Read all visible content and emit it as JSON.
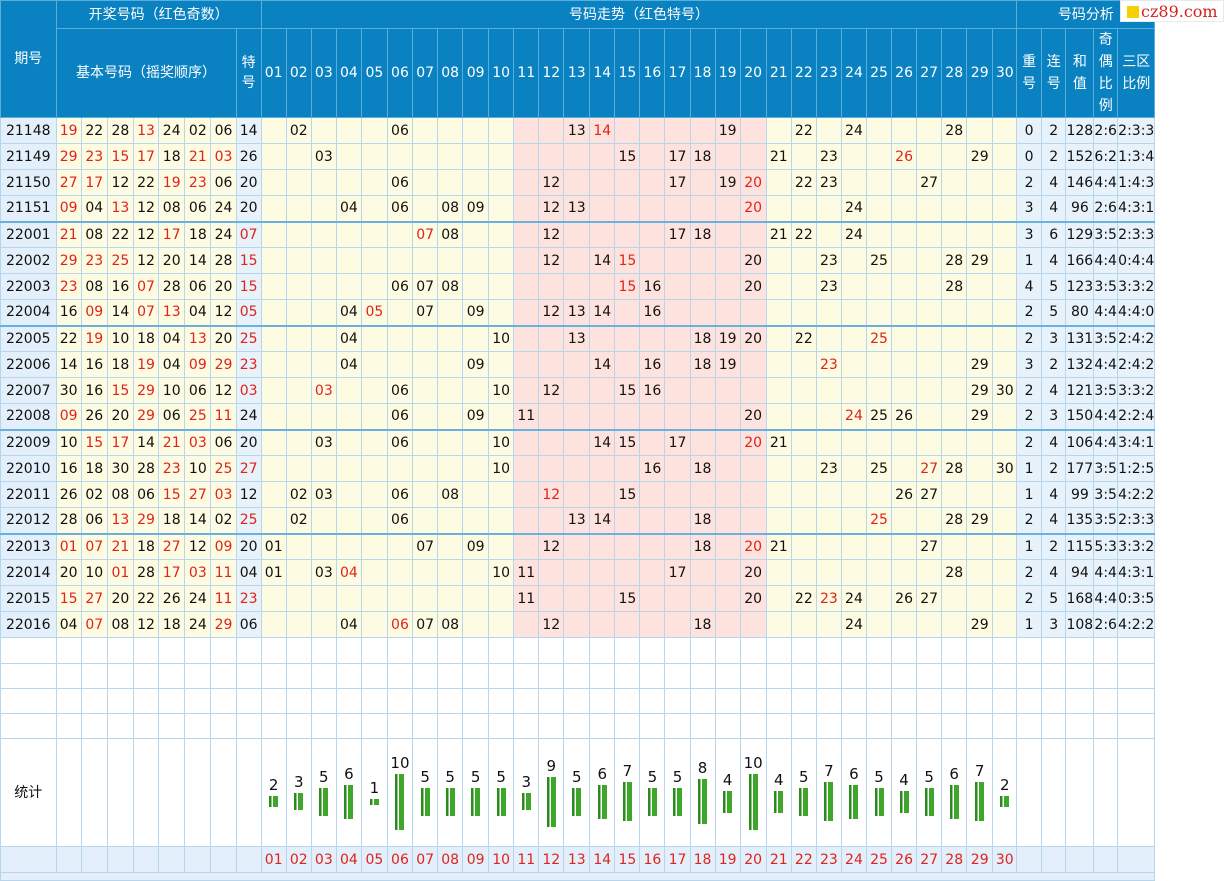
{
  "header": {
    "period_label": "期号",
    "draw_group": "开奖号码（红色奇数）",
    "basic_label": "基本号码（摇奖顺序）",
    "special_label": "特号",
    "trend_group": "号码走势（红色特号）",
    "analysis_group": "号码分析",
    "analysis_cols": [
      "重号",
      "连号",
      "和值",
      "奇偶比例",
      "三区比例"
    ]
  },
  "numbers": [
    "01",
    "02",
    "03",
    "04",
    "05",
    "06",
    "07",
    "08",
    "09",
    "10",
    "11",
    "12",
    "13",
    "14",
    "15",
    "16",
    "17",
    "18",
    "19",
    "20",
    "21",
    "22",
    "23",
    "24",
    "25",
    "26",
    "27",
    "28",
    "29",
    "30"
  ],
  "draws": [
    {
      "period": "21148",
      "balls": [
        "19",
        "22",
        "28",
        "13",
        "24",
        "02",
        "06"
      ],
      "special": "14",
      "repeat": "0",
      "consec": "2",
      "sum": "128",
      "oddeven": "2:6",
      "zone": "2:3:3"
    },
    {
      "period": "21149",
      "balls": [
        "29",
        "23",
        "15",
        "17",
        "18",
        "21",
        "03"
      ],
      "special": "26",
      "repeat": "0",
      "consec": "2",
      "sum": "152",
      "oddeven": "6:2",
      "zone": "1:3:4"
    },
    {
      "period": "21150",
      "balls": [
        "27",
        "17",
        "12",
        "22",
        "19",
        "23",
        "06"
      ],
      "special": "20",
      "repeat": "2",
      "consec": "4",
      "sum": "146",
      "oddeven": "4:4",
      "zone": "1:4:3"
    },
    {
      "period": "21151",
      "balls": [
        "09",
        "04",
        "13",
        "12",
        "08",
        "06",
        "24"
      ],
      "special": "20",
      "repeat": "3",
      "consec": "4",
      "sum": "96",
      "oddeven": "2:6",
      "zone": "4:3:1"
    },
    {
      "period": "22001",
      "balls": [
        "21",
        "08",
        "22",
        "12",
        "17",
        "18",
        "24"
      ],
      "special": "07",
      "repeat": "3",
      "consec": "6",
      "sum": "129",
      "oddeven": "3:5",
      "zone": "2:3:3"
    },
    {
      "period": "22002",
      "balls": [
        "29",
        "23",
        "25",
        "12",
        "20",
        "14",
        "28"
      ],
      "special": "15",
      "repeat": "1",
      "consec": "4",
      "sum": "166",
      "oddeven": "4:4",
      "zone": "0:4:4"
    },
    {
      "period": "22003",
      "balls": [
        "23",
        "08",
        "16",
        "07",
        "28",
        "06",
        "20"
      ],
      "special": "15",
      "repeat": "4",
      "consec": "5",
      "sum": "123",
      "oddeven": "3:5",
      "zone": "3:3:2"
    },
    {
      "period": "22004",
      "balls": [
        "16",
        "09",
        "14",
        "07",
        "13",
        "04",
        "12"
      ],
      "special": "05",
      "repeat": "2",
      "consec": "5",
      "sum": "80",
      "oddeven": "4:4",
      "zone": "4:4:0"
    },
    {
      "period": "22005",
      "balls": [
        "22",
        "19",
        "10",
        "18",
        "04",
        "13",
        "20"
      ],
      "special": "25",
      "repeat": "2",
      "consec": "3",
      "sum": "131",
      "oddeven": "3:5",
      "zone": "2:4:2"
    },
    {
      "period": "22006",
      "balls": [
        "14",
        "16",
        "18",
        "19",
        "04",
        "09",
        "29"
      ],
      "special": "23",
      "repeat": "3",
      "consec": "2",
      "sum": "132",
      "oddeven": "4:4",
      "zone": "2:4:2"
    },
    {
      "period": "22007",
      "balls": [
        "30",
        "16",
        "15",
        "29",
        "10",
        "06",
        "12"
      ],
      "special": "03",
      "repeat": "2",
      "consec": "4",
      "sum": "121",
      "oddeven": "3:5",
      "zone": "3:3:2"
    },
    {
      "period": "22008",
      "balls": [
        "09",
        "26",
        "20",
        "29",
        "06",
        "25",
        "11"
      ],
      "special": "24",
      "repeat": "2",
      "consec": "3",
      "sum": "150",
      "oddeven": "4:4",
      "zone": "2:2:4"
    },
    {
      "period": "22009",
      "balls": [
        "10",
        "15",
        "17",
        "14",
        "21",
        "03",
        "06"
      ],
      "special": "20",
      "repeat": "2",
      "consec": "4",
      "sum": "106",
      "oddeven": "4:4",
      "zone": "3:4:1"
    },
    {
      "period": "22010",
      "balls": [
        "16",
        "18",
        "30",
        "28",
        "23",
        "10",
        "25"
      ],
      "special": "27",
      "repeat": "1",
      "consec": "2",
      "sum": "177",
      "oddeven": "3:5",
      "zone": "1:2:5"
    },
    {
      "period": "22011",
      "balls": [
        "26",
        "02",
        "08",
        "06",
        "15",
        "27",
        "03"
      ],
      "special": "12",
      "repeat": "1",
      "consec": "4",
      "sum": "99",
      "oddeven": "3:5",
      "zone": "4:2:2"
    },
    {
      "period": "22012",
      "balls": [
        "28",
        "06",
        "13",
        "29",
        "18",
        "14",
        "02"
      ],
      "special": "25",
      "repeat": "2",
      "consec": "4",
      "sum": "135",
      "oddeven": "3:5",
      "zone": "2:3:3"
    },
    {
      "period": "22013",
      "balls": [
        "01",
        "07",
        "21",
        "18",
        "27",
        "12",
        "09"
      ],
      "special": "20",
      "repeat": "1",
      "consec": "2",
      "sum": "115",
      "oddeven": "5:3",
      "zone": "3:3:2"
    },
    {
      "period": "22014",
      "balls": [
        "20",
        "10",
        "01",
        "28",
        "17",
        "03",
        "11"
      ],
      "special": "04",
      "repeat": "2",
      "consec": "4",
      "sum": "94",
      "oddeven": "4:4",
      "zone": "4:3:1"
    },
    {
      "period": "22015",
      "balls": [
        "15",
        "27",
        "20",
        "22",
        "26",
        "24",
        "11"
      ],
      "special": "23",
      "repeat": "2",
      "consec": "5",
      "sum": "168",
      "oddeven": "4:4",
      "zone": "0:3:5"
    },
    {
      "period": "22016",
      "balls": [
        "04",
        "07",
        "08",
        "12",
        "18",
        "24",
        "29"
      ],
      "special": "06",
      "repeat": "1",
      "consec": "3",
      "sum": "108",
      "oddeven": "2:6",
      "zone": "4:2:2"
    }
  ],
  "stats_label": "统计",
  "chart_data": {
    "type": "bar",
    "categories": [
      "01",
      "02",
      "03",
      "04",
      "05",
      "06",
      "07",
      "08",
      "09",
      "10",
      "11",
      "12",
      "13",
      "14",
      "15",
      "16",
      "17",
      "18",
      "19",
      "20",
      "21",
      "22",
      "23",
      "24",
      "25",
      "26",
      "27",
      "28",
      "29",
      "30"
    ],
    "values": [
      2,
      3,
      5,
      6,
      1,
      10,
      5,
      5,
      5,
      5,
      3,
      9,
      5,
      6,
      7,
      5,
      5,
      8,
      4,
      10,
      4,
      5,
      7,
      6,
      5,
      4,
      5,
      6,
      7,
      2
    ],
    "title": "统计",
    "xlabel": "",
    "ylabel": ""
  },
  "logo_text": "cz89.com",
  "colors": {
    "header": "#0a82c2",
    "odd_red": "#e0231b",
    "zone_yellow": "#fdfbe1",
    "zone_pink": "#fde2dd",
    "bar_green": "#3ea72b"
  }
}
